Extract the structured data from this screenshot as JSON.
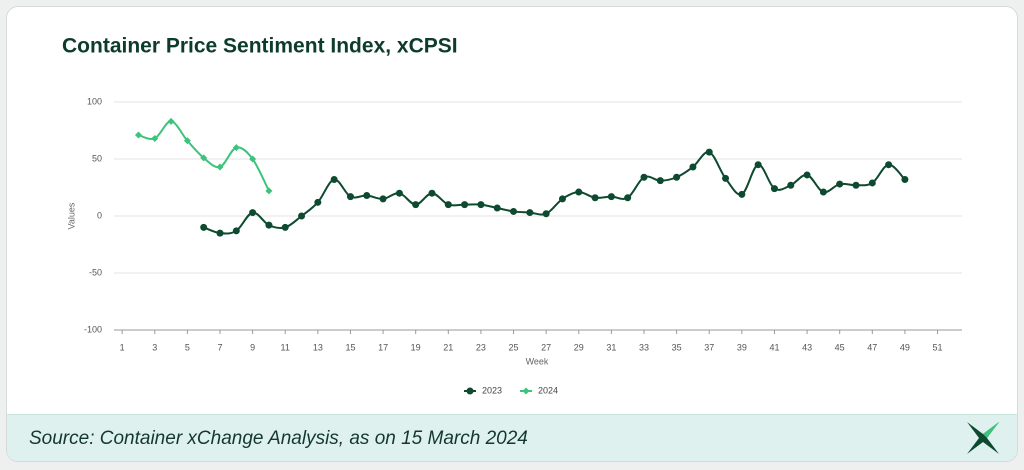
{
  "chart_data": {
    "type": "line",
    "title": "Container Price Sentiment Index, xCPSI",
    "x_label": "Week",
    "y_label": "Values",
    "x": [
      1,
      2,
      3,
      4,
      5,
      6,
      7,
      8,
      9,
      10,
      11,
      12,
      13,
      14,
      15,
      16,
      17,
      18,
      19,
      20,
      21,
      22,
      23,
      24,
      25,
      26,
      27,
      28,
      29,
      30,
      31,
      32,
      33,
      34,
      35,
      36,
      37,
      38,
      39,
      40,
      41,
      42,
      43,
      44,
      45,
      46,
      47,
      48,
      49,
      50,
      51,
      52
    ],
    "xlim": [
      0.5,
      52.5
    ],
    "xticks": [
      1,
      3,
      5,
      7,
      9,
      11,
      13,
      15,
      17,
      19,
      21,
      23,
      25,
      27,
      29,
      31,
      33,
      35,
      37,
      39,
      41,
      43,
      45,
      47,
      49,
      51
    ],
    "ylim": [
      -100,
      100
    ],
    "yticks": [
      -100,
      -50,
      0,
      50,
      100
    ],
    "grid": true,
    "series": [
      {
        "name": "2023",
        "color": "#0d4a2f",
        "marker": "circle",
        "values": [
          null,
          null,
          null,
          null,
          null,
          -10,
          -15,
          -13,
          3,
          -8,
          -10,
          0,
          12,
          32,
          17,
          18,
          15,
          20,
          10,
          20,
          10,
          10,
          10,
          7,
          4,
          3,
          2,
          15,
          21,
          16,
          17,
          16,
          34,
          31,
          34,
          43,
          56,
          33,
          19,
          45,
          24,
          27,
          36,
          21,
          28,
          27,
          29,
          45,
          32,
          null,
          null,
          null
        ]
      },
      {
        "name": "2024",
        "color": "#3cc47c",
        "marker": "diamond",
        "values": [
          null,
          71,
          68,
          83,
          66,
          51,
          43,
          60,
          50,
          22,
          null,
          null,
          null,
          null,
          null,
          null,
          null,
          null,
          null,
          null,
          null,
          null,
          null,
          null,
          null,
          null,
          null,
          null,
          null,
          null,
          null,
          null,
          null,
          null,
          null,
          null,
          null,
          null,
          null,
          null,
          null,
          null,
          null,
          null,
          null,
          null,
          null,
          null,
          null,
          null,
          null,
          null
        ]
      }
    ]
  },
  "footer": {
    "source": "Source: Container xChange Analysis, as on 15 March 2024"
  }
}
